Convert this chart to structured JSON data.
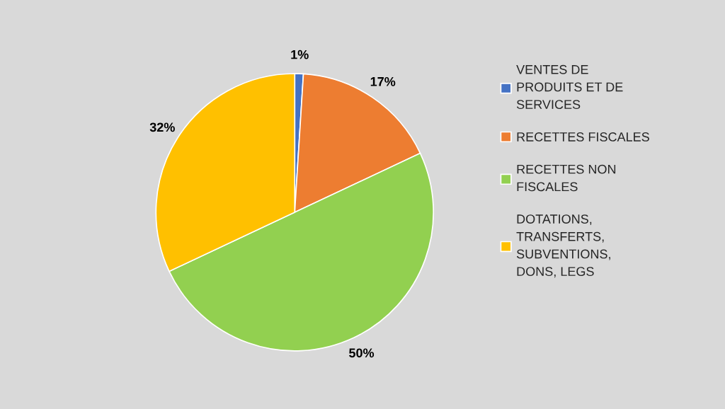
{
  "chart_data": {
    "type": "pie",
    "categories": [
      "VENTES DE\nPRODUITS ET DE\nSERVICES",
      "RECETTES FISCALES",
      "RECETTES NON\nFISCALES",
      "DOTATIONS,\nTRANSFERTS,\nSUBVENTIONS,\nDONS, LEGS"
    ],
    "values": [
      1,
      17,
      50,
      32
    ],
    "colors": [
      "#4472c4",
      "#ed7d31",
      "#92d050",
      "#ffc000"
    ],
    "value_labels": [
      "1%",
      "17%",
      "50%",
      "32%"
    ],
    "legend": "right"
  }
}
